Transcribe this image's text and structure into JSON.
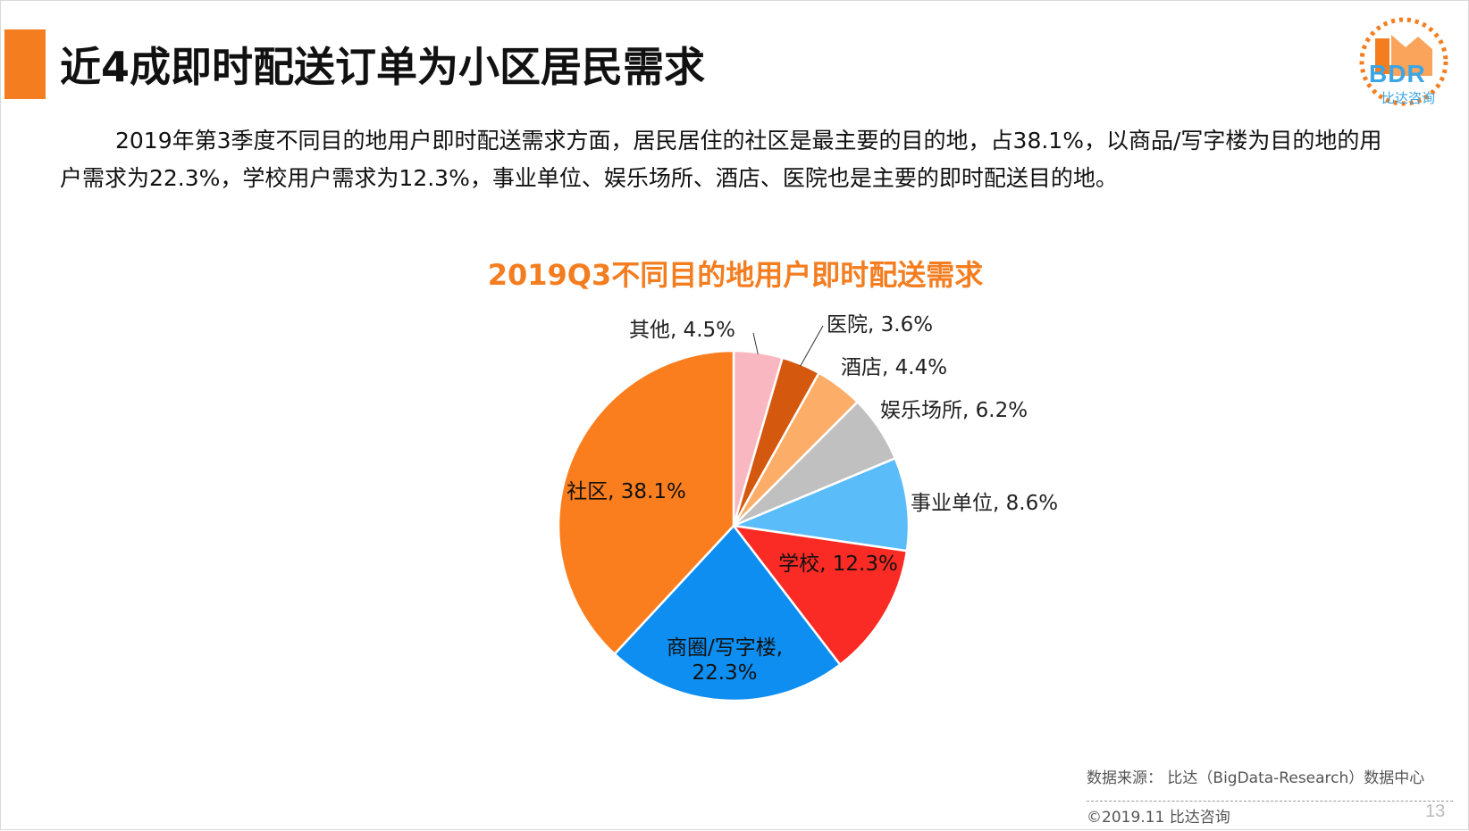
{
  "header": {
    "title": "近4成即时配送订单为小区居民需求"
  },
  "logo": {
    "text": "BDR",
    "subtitle": "比达咨询"
  },
  "description": "2019年第3季度不同目的地用户即时配送需求方面，居民居住的社区是最主要的目的地，占38.1%，以商品/写字楼为目的地的用户需求为22.3%，学校用户需求为12.3%，事业单位、娱乐场所、酒店、医院也是主要的即时配送目的地。",
  "chart_data": {
    "type": "pie",
    "title": "2019Q3不同目的地用户即时配送需求",
    "start": "12 o'clock",
    "direction": "clockwise",
    "slices": [
      {
        "name": "其他",
        "value": 4.5,
        "label": "其他, 4.5%",
        "color": "#f9b8c1"
      },
      {
        "name": "医院",
        "value": 3.6,
        "label": "医院, 3.6%",
        "color": "#d4580e"
      },
      {
        "name": "酒店",
        "value": 4.4,
        "label": "酒店, 4.4%",
        "color": "#fcae69"
      },
      {
        "name": "娱乐场所",
        "value": 6.2,
        "label": "娱乐场所, 6.2%",
        "color": "#c0c0c0"
      },
      {
        "name": "事业单位",
        "value": 8.6,
        "label": "事业单位, 8.6%",
        "color": "#5bbcfa"
      },
      {
        "name": "学校",
        "value": 12.3,
        "label": "学校, 12.3%",
        "color": "#fa2b24"
      },
      {
        "name": "商圈/写字楼",
        "value": 22.3,
        "label_lines": [
          "商圈/写字楼,",
          "22.3%"
        ],
        "color": "#0d8ef0"
      },
      {
        "name": "社区",
        "value": 38.1,
        "label": "社区, 38.1%",
        "color": "#fa7d1e"
      }
    ],
    "legend": "none"
  },
  "footer": {
    "source": "数据来源： 比达（BigData-Research）数据中心",
    "copyright": "©2019.11  比达咨询",
    "page": "13"
  },
  "colors": {
    "accent": "#f47d20",
    "logo": "#3aa6e6"
  }
}
